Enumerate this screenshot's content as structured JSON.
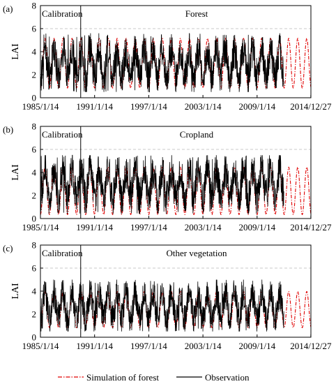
{
  "chart_data": [
    {
      "type": "line",
      "panel_label": "(a)",
      "title": "Forest",
      "calibration_label": "Calibration",
      "ylabel": "LAI",
      "ylim": [
        0,
        8
      ],
      "yticks": [
        0,
        2,
        4,
        6,
        8
      ],
      "dashed_reference_y": 6,
      "calibration_end": 1989.5,
      "xlim": [
        1985.04,
        2015.0
      ],
      "xtick_labels": [
        "1985/1/14",
        "1991/1/14",
        "1997/1/14",
        "2003/1/14",
        "2009/1/14",
        "2014/12/27"
      ],
      "xtick_years": [
        1985.04,
        1991.04,
        1997.04,
        2003.04,
        2009.04,
        2014.99
      ],
      "observation_end": 2012.0,
      "simulation": {
        "min": 0.8,
        "max": 5.2,
        "mean": 3.0,
        "cycle_years": 1.0
      },
      "observation": {
        "min": 0.5,
        "max": 5.6,
        "mean": 3.0
      }
    },
    {
      "type": "line",
      "panel_label": "(b)",
      "title": "Cropland",
      "calibration_label": "Calibration",
      "ylabel": "LAI",
      "ylim": [
        0,
        8
      ],
      "yticks": [
        0,
        2,
        4,
        6,
        8
      ],
      "dashed_reference_y": 6,
      "calibration_end": 1989.5,
      "xlim": [
        1985.04,
        2015.0
      ],
      "xtick_labels": [
        "1985/1/14",
        "1991/1/14",
        "1997/1/14",
        "2003/1/14",
        "2009/1/14",
        "2014/12/27"
      ],
      "xtick_years": [
        1985.04,
        1991.04,
        1997.04,
        2003.04,
        2009.04,
        2014.99
      ],
      "observation_end": 2012.0,
      "simulation": {
        "min": 0.3,
        "max": 4.5,
        "mean": 2.5,
        "cycle_years": 1.0
      },
      "observation": {
        "min": 0.4,
        "max": 5.5,
        "mean": 3.0
      }
    },
    {
      "type": "line",
      "panel_label": "(c)",
      "title": "Other vegetation",
      "calibration_label": "Calibration",
      "ylabel": "LAI",
      "ylim": [
        0,
        8
      ],
      "yticks": [
        0,
        2,
        4,
        6,
        8
      ],
      "dashed_reference_y": 6,
      "calibration_end": 1989.5,
      "xlim": [
        1985.04,
        2015.0
      ],
      "xtick_labels": [
        "1985/1/14",
        "1991/1/14",
        "1997/1/14",
        "2003/1/14",
        "2009/1/14",
        "2014/12/27"
      ],
      "xtick_years": [
        1985.04,
        1991.04,
        1997.04,
        2003.04,
        2009.04,
        2014.99
      ],
      "observation_end": 2012.0,
      "simulation": {
        "min": 0.8,
        "max": 4.0,
        "mean": 2.6,
        "cycle_years": 1.0
      },
      "observation": {
        "min": 0.5,
        "max": 5.0,
        "mean": 2.7
      }
    }
  ],
  "legend": {
    "placement": "bottom-center",
    "items": [
      {
        "label": "Simulation of forest",
        "color": "#e00000",
        "style": "dash-dot"
      },
      {
        "label": "Observation",
        "color": "#000000",
        "style": "solid"
      }
    ]
  },
  "colors": {
    "simulation": "#e00000",
    "observation": "#000000",
    "reference_line": "#c8c8c8"
  }
}
